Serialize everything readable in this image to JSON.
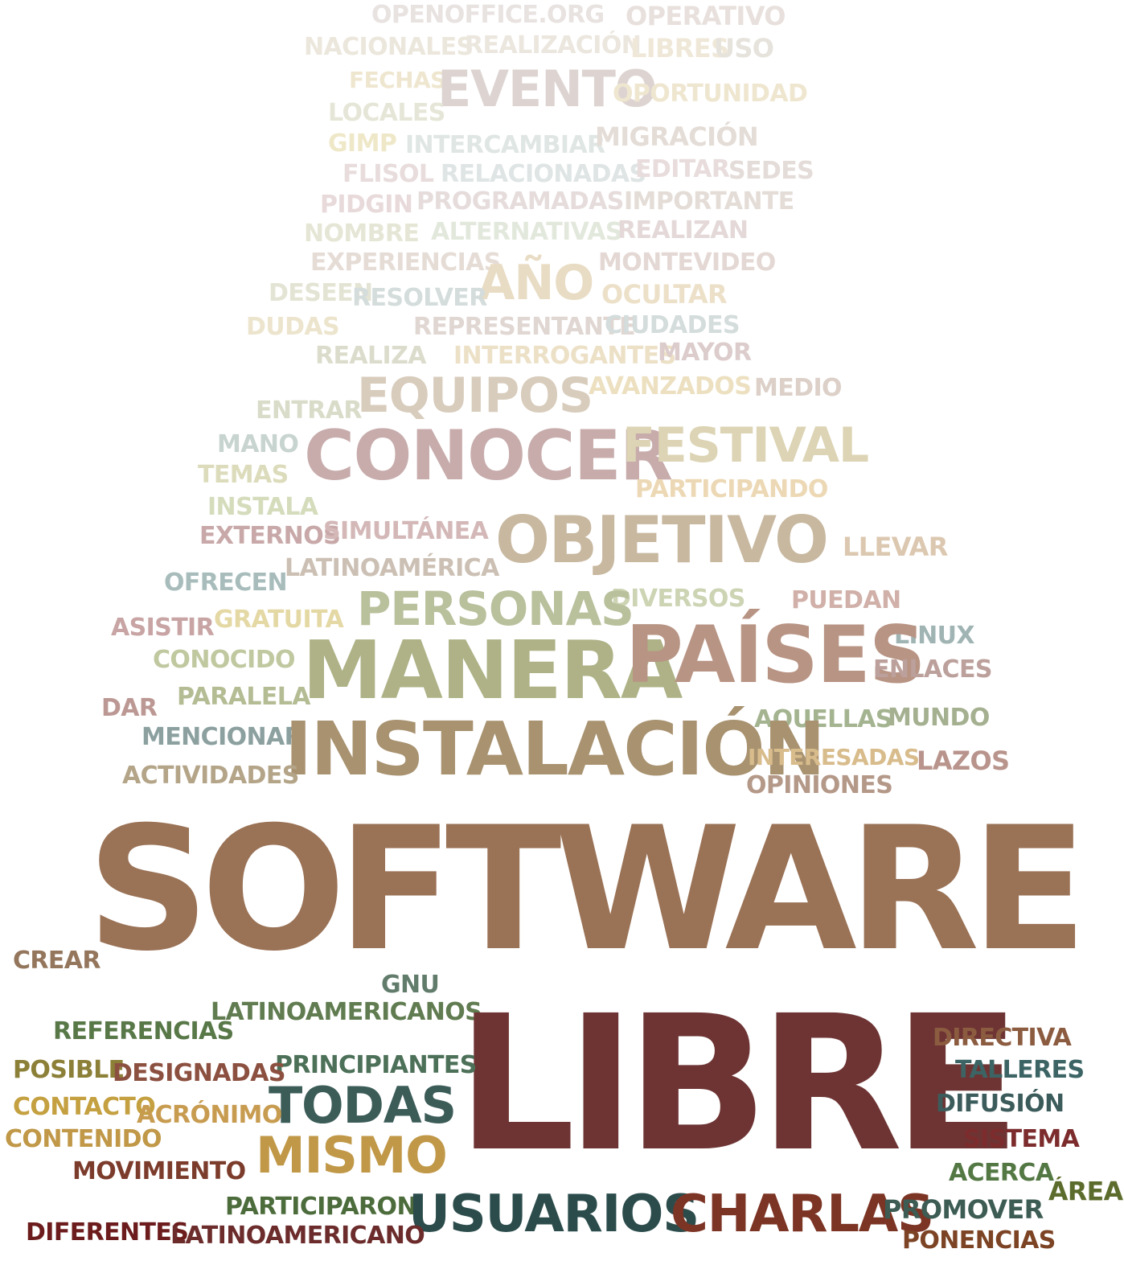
{
  "cloud": {
    "words": [
      {
        "text": "OPENOFFICE.ORG",
        "color": "#e8e2e0"
      },
      {
        "text": "OPERATIVO",
        "color": "#e8e0dc"
      },
      {
        "text": "NACIONALES",
        "color": "#ece7dc"
      },
      {
        "text": "REALIZACIÓN",
        "color": "#ebe6de"
      },
      {
        "text": "LIBRES",
        "color": "#efe8d8"
      },
      {
        "text": "USO",
        "color": "#e6e3dd"
      },
      {
        "text": "FECHAS",
        "color": "#efe6cf"
      },
      {
        "text": "EVENTO",
        "color": "#ddd4d2"
      },
      {
        "text": "OPORTUNIDAD",
        "color": "#efe6d0"
      },
      {
        "text": "LOCALES",
        "color": "#e6e6d8"
      },
      {
        "text": "GIMP",
        "color": "#efe8c8"
      },
      {
        "text": "INTERCAMBIAR",
        "color": "#dfe6e4"
      },
      {
        "text": "MIGRACIÓN",
        "color": "#e4dcd6"
      },
      {
        "text": "FLISOL",
        "color": "#e8dcdc"
      },
      {
        "text": "RELACIONADAS",
        "color": "#dfe4e4"
      },
      {
        "text": "EDITAR",
        "color": "#e8dcdc"
      },
      {
        "text": "SEDES",
        "color": "#e4dcd8"
      },
      {
        "text": "PIDGIN",
        "color": "#e8dada"
      },
      {
        "text": "PROGRAMADAS",
        "color": "#e6dcdc"
      },
      {
        "text": "IMPORTANTE",
        "color": "#e4dcd6"
      },
      {
        "text": "NOMBRE",
        "color": "#e6e6d6"
      },
      {
        "text": "ALTERNATIVAS",
        "color": "#e2e8dc"
      },
      {
        "text": "REALIZAN",
        "color": "#e4d8d8"
      },
      {
        "text": "EXPERIENCIAS",
        "color": "#e6dcd6"
      },
      {
        "text": "AÑO",
        "color": "#e8dcc4"
      },
      {
        "text": "MONTEVIDEO",
        "color": "#e4d8d4"
      },
      {
        "text": "DESEEN",
        "color": "#e4e4d4"
      },
      {
        "text": "RESOLVER",
        "color": "#d4dcdc"
      },
      {
        "text": "OCULTAR",
        "color": "#ece0c8"
      },
      {
        "text": "DUDAS",
        "color": "#ece4cc"
      },
      {
        "text": "REPRESENTANTE",
        "color": "#e0d6d2"
      },
      {
        "text": "CIUDADES",
        "color": "#d4dcdc"
      },
      {
        "text": "REALIZA",
        "color": "#dcdccc"
      },
      {
        "text": "INTERROGANTES",
        "color": "#ece0c6"
      },
      {
        "text": "MAYOR",
        "color": "#dccccc"
      },
      {
        "text": "EQUIPOS",
        "color": "#d8ccbc"
      },
      {
        "text": "AVANZADOS",
        "color": "#ece0c0"
      },
      {
        "text": "MEDIO",
        "color": "#dcd0c8"
      },
      {
        "text": "ENTRAR",
        "color": "#d8dcc8"
      },
      {
        "text": "MANO",
        "color": "#c8d4d0"
      },
      {
        "text": "CONOCER",
        "color": "#c8acac"
      },
      {
        "text": "FESTIVAL",
        "color": "#dcd4b4"
      },
      {
        "text": "TEMAS",
        "color": "#dcdcbc"
      },
      {
        "text": "PARTICIPANDO",
        "color": "#ecd8b4"
      },
      {
        "text": "INSTALA",
        "color": "#d4dcbc"
      },
      {
        "text": "EXTERNOS",
        "color": "#c8a8a8"
      },
      {
        "text": "SIMULTÁNEA",
        "color": "#d4b8b8"
      },
      {
        "text": "OBJETIVO",
        "color": "#c8b8a0"
      },
      {
        "text": "LLEVAR",
        "color": "#dcc8b0"
      },
      {
        "text": "LATINOAMÉRICA",
        "color": "#ccc0b4"
      },
      {
        "text": "OFRECEN",
        "color": "#a8bcbc"
      },
      {
        "text": "DIVERSOS",
        "color": "#ccd4b4"
      },
      {
        "text": "PERSONAS",
        "color": "#b8c09c"
      },
      {
        "text": "PUEDAN",
        "color": "#d0b0a8"
      },
      {
        "text": "ASISTIR",
        "color": "#c8a4a4"
      },
      {
        "text": "GRATUITA",
        "color": "#e4d8a4"
      },
      {
        "text": "LINUX",
        "color": "#a0b4b4"
      },
      {
        "text": "MANERA",
        "color": "#aeb286"
      },
      {
        "text": "PAÍSES",
        "color": "#b89484"
      },
      {
        "text": "CONOCIDO",
        "color": "#c0c8a0"
      },
      {
        "text": "ENLACES",
        "color": "#bca09c"
      },
      {
        "text": "DAR",
        "color": "#bc9894"
      },
      {
        "text": "PARALELA",
        "color": "#b4bc94"
      },
      {
        "text": "AQUELLAS",
        "color": "#a4b490"
      },
      {
        "text": "MUNDO",
        "color": "#a4b090"
      },
      {
        "text": "MENCIONAR",
        "color": "#8ca0a0"
      },
      {
        "text": "INSTALACIÓN",
        "color": "#a89270"
      },
      {
        "text": "INTERESADAS",
        "color": "#d8bc8c"
      },
      {
        "text": "LAZOS",
        "color": "#b8948c"
      },
      {
        "text": "ACTIVIDADES",
        "color": "#b4a488"
      },
      {
        "text": "OPINIONES",
        "color": "#b49888"
      },
      {
        "text": "SOFTWARE",
        "color": "#9a7256"
      },
      {
        "text": "CREAR",
        "color": "#94765c"
      },
      {
        "text": "GNU",
        "color": "#627c6c"
      },
      {
        "text": "LATINOAMERICANOS",
        "color": "#607c50"
      },
      {
        "text": "REFERENCIAS",
        "color": "#587848"
      },
      {
        "text": "LIBRE",
        "color": "#6e3434"
      },
      {
        "text": "DIRECTIVA",
        "color": "#8c5c40"
      },
      {
        "text": "PRINCIPIANTES",
        "color": "#4c7058"
      },
      {
        "text": "POSIBLE",
        "color": "#8c8038"
      },
      {
        "text": "DESIGNADAS",
        "color": "#8c5040"
      },
      {
        "text": "TALLERES",
        "color": "#3c6464"
      },
      {
        "text": "TODAS",
        "color": "#3c5c58"
      },
      {
        "text": "CONTACTO",
        "color": "#c4a040"
      },
      {
        "text": "ACRÓNIMO",
        "color": "#c89c50"
      },
      {
        "text": "DIFUSIÓN",
        "color": "#3c5c5c"
      },
      {
        "text": "CONTENIDO",
        "color": "#c09848"
      },
      {
        "text": "MISMO",
        "color": "#c09848"
      },
      {
        "text": "SISTEMA",
        "color": "#7c2c2c"
      },
      {
        "text": "MOVIMIENTO",
        "color": "#7c3c2c"
      },
      {
        "text": "ACERCA",
        "color": "#547844"
      },
      {
        "text": "ÁREA",
        "color": "#5c6c2c"
      },
      {
        "text": "PARTICIPARON",
        "color": "#4c6c3c"
      },
      {
        "text": "USUARIOS",
        "color": "#2c4c4c"
      },
      {
        "text": "CHARLAS",
        "color": "#7c3424"
      },
      {
        "text": "PROMOVER",
        "color": "#3c5c54"
      },
      {
        "text": "DIFERENTES",
        "color": "#6c1c1c"
      },
      {
        "text": "LATINOAMERICANO",
        "color": "#6c2c2c"
      },
      {
        "text": "PONENCIAS",
        "color": "#7c4424"
      }
    ]
  }
}
